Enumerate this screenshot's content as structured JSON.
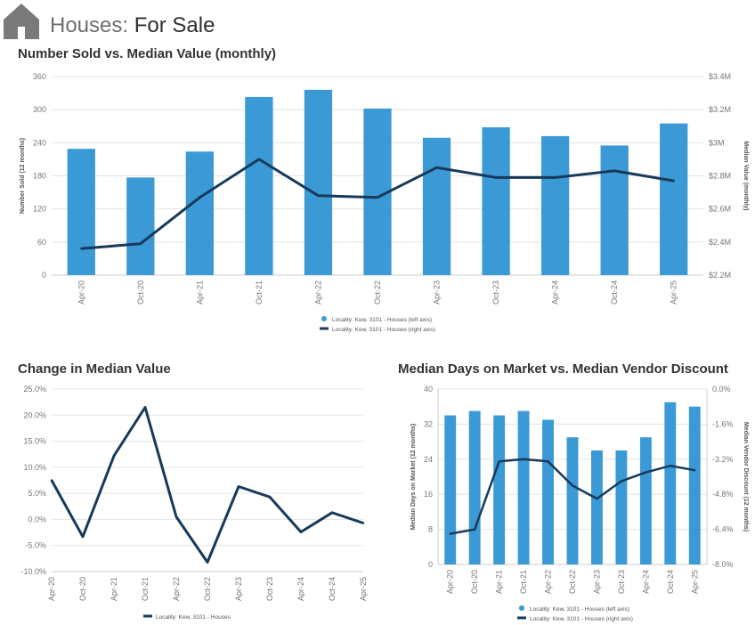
{
  "page": {
    "title_prefix": "Houses:",
    "title_main": "For Sale",
    "icon": "house-icon"
  },
  "colors": {
    "bar": "#3b99d6",
    "line": "#173a5a",
    "grid": "#e3e3e3",
    "axis_text": "#777777"
  },
  "chart_data": [
    {
      "id": "sold-vs-value",
      "type": "bar+line",
      "title": "Number Sold vs. Median Value (monthly)",
      "categories": [
        "Apr-20",
        "Oct-20",
        "Apr-21",
        "Oct-21",
        "Apr-22",
        "Oct-22",
        "Apr-23",
        "Oct-23",
        "Apr-24",
        "Oct-24",
        "Apr-25"
      ],
      "series": [
        {
          "name": "Locality: Kew, 3101 - Houses (left axis)",
          "type": "bar",
          "axis": "left",
          "values": [
            229,
            177,
            224,
            323,
            336,
            302,
            249,
            268,
            252,
            235,
            275
          ]
        },
        {
          "name": "Locality: Kew, 3101 - Houses (right axis)",
          "type": "line",
          "axis": "right",
          "values": [
            2.36,
            2.39,
            2.67,
            2.9,
            2.68,
            2.67,
            2.85,
            2.79,
            2.79,
            2.83,
            2.77
          ]
        }
      ],
      "ylabel_left": "Number Sold (12 months)",
      "ylabel_right": "Median Value (monthly)",
      "ylim_left": [
        0,
        360
      ],
      "yticks_left": [
        "0",
        "60",
        "120",
        "180",
        "240",
        "300",
        "360"
      ],
      "ylim_right": [
        2.2,
        3.4
      ],
      "yticks_right": [
        "$2.2M",
        "$2.4M",
        "$2.6M",
        "$2.8M",
        "$3M",
        "$3.2M",
        "$3.4M"
      ],
      "legend": "bottom-center"
    },
    {
      "id": "change-median-value",
      "type": "line",
      "title": "Change in Median Value",
      "categories": [
        "Apr-20",
        "Oct-20",
        "Apr-21",
        "Oct-21",
        "Apr-22",
        "Oct-22",
        "Apr-23",
        "Oct-23",
        "Apr-24",
        "Oct-24",
        "Apr-25"
      ],
      "series": [
        {
          "name": "Locality: Kew, 3101 - Houses",
          "values": [
            7.5,
            -3.3,
            12.2,
            21.5,
            0.5,
            -8.2,
            6.3,
            4.3,
            -2.4,
            1.3,
            -0.7
          ]
        }
      ],
      "ylim": [
        -10,
        25
      ],
      "yticks": [
        "-10.0%",
        "-5.0%",
        "0.0%",
        "5.0%",
        "10.0%",
        "15.0%",
        "20.0%",
        "25.0%"
      ],
      "legend": "bottom-center"
    },
    {
      "id": "days-vs-discount",
      "type": "bar+line",
      "title": "Median Days on Market vs. Median Vendor Discount",
      "categories": [
        "Apr-20",
        "Oct-20",
        "Apr-21",
        "Oct-21",
        "Apr-22",
        "Oct-22",
        "Apr-23",
        "Oct-23",
        "Apr-24",
        "Oct-24",
        "Apr-25"
      ],
      "series": [
        {
          "name": "Locality: Kew, 3101 - Houses (left axis)",
          "type": "bar",
          "axis": "left",
          "values": [
            34,
            35,
            34,
            35,
            33,
            29,
            26,
            26,
            29,
            37,
            36
          ]
        },
        {
          "name": "Locality: Kew, 3101 - Houses (right axis)",
          "type": "line",
          "axis": "right",
          "values": [
            -6.6,
            -6.4,
            -3.3,
            -3.2,
            -3.3,
            -4.4,
            -5.0,
            -4.2,
            -3.8,
            -3.5,
            -3.7
          ]
        }
      ],
      "ylabel_left": "Median Days on Market (12 months)",
      "ylabel_right": "Median Vendor Discount (12 months)",
      "ylim_left": [
        0,
        40
      ],
      "yticks_left": [
        "0",
        "8",
        "16",
        "24",
        "32",
        "40"
      ],
      "ylim_right": [
        -8.0,
        0.0
      ],
      "yticks_right": [
        "-8.0%",
        "-6.4%",
        "-4.8%",
        "-3.2%",
        "-1.6%",
        "0.0%"
      ],
      "legend": "bottom-center"
    }
  ]
}
